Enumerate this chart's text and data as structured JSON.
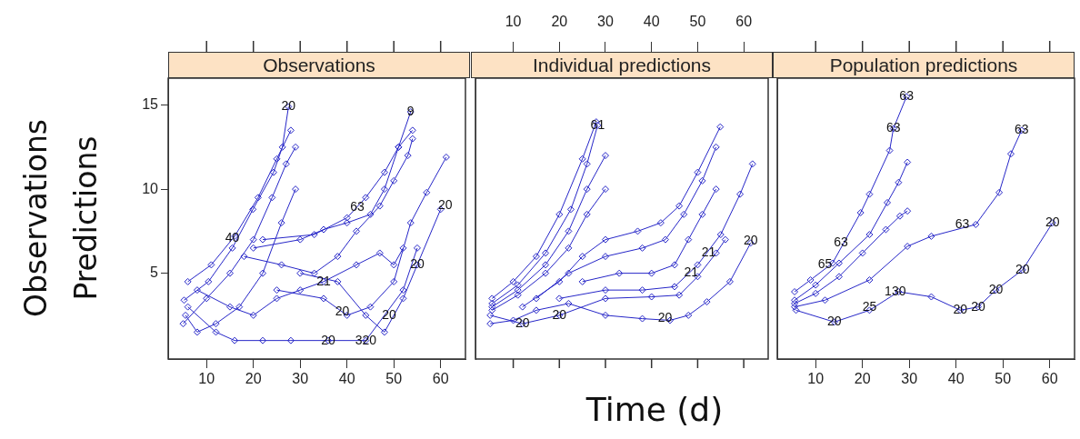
{
  "chart_data": [
    {
      "type": "line",
      "title": "Observations",
      "ylabel": "Observations\nPredictions",
      "xlim": [
        1.8,
        65.3
      ],
      "xticks": [
        10,
        20,
        30,
        40,
        50,
        60
      ],
      "ylim": [
        -0.1,
        16.6
      ],
      "yticks": [
        5,
        10,
        15
      ],
      "marker": "diamond",
      "line_style": "solid",
      "series": [
        {
          "color": "#2626c8",
          "x": [
            5.2,
            10.4,
            15.5,
            19.9,
            24.3,
            26.2,
            27.5
          ],
          "values": [
            3.4,
            4.5,
            6.5,
            8.8,
            11,
            12.5,
            14.9
          ]
        },
        {
          "color": "#2626c8",
          "x": [
            5,
            10,
            15,
            20,
            24,
            27,
            29
          ],
          "values": [
            2,
            3.5,
            5,
            7,
            9.5,
            11.5,
            12.5
          ]
        },
        {
          "color": "#2626c8",
          "x": [
            6,
            11,
            16,
            21,
            25,
            28
          ],
          "values": [
            4.5,
            5.5,
            7.2,
            9.5,
            11.8,
            13.5
          ]
        },
        {
          "color": "#2626c8",
          "x": [
            5.5,
            8,
            12,
            17,
            22,
            26,
            29
          ],
          "values": [
            2.5,
            1.5,
            2,
            3,
            5,
            8,
            10
          ]
        },
        {
          "color": "#2626c8",
          "x": [
            6,
            12,
            16,
            22,
            28,
            36,
            44,
            52,
            55
          ],
          "values": [
            3,
            1.5,
            1,
            1,
            1,
            1,
            1,
            4,
            6.5
          ]
        },
        {
          "color": "#2626c8",
          "x": [
            20,
            30,
            35,
            40,
            45,
            48,
            51,
            53.6
          ],
          "values": [
            6.5,
            7,
            7.6,
            8,
            8.5,
            10,
            12.5,
            14.6
          ]
        },
        {
          "color": "#2626c8",
          "x": [
            22,
            33,
            40,
            44,
            48,
            51,
            54
          ],
          "values": [
            7,
            7.3,
            8.3,
            9.5,
            11,
            12.5,
            13.5
          ]
        },
        {
          "color": "#2626c8",
          "x": [
            18,
            26,
            33,
            38,
            42,
            47,
            50,
            53,
            54
          ],
          "values": [
            6,
            5.5,
            5,
            6,
            7.5,
            9,
            10.5,
            12,
            13
          ]
        },
        {
          "color": "#2626c8",
          "x": [
            25,
            35,
            40,
            45,
            50,
            53.6,
            57,
            61.2
          ],
          "values": [
            4,
            3.5,
            2.5,
            3,
            4.5,
            8,
            9.8,
            11.9
          ]
        },
        {
          "color": "#2626c8",
          "x": [
            30,
            38,
            44,
            48,
            52,
            55,
            60
          ],
          "values": [
            5,
            4.5,
            2.5,
            1.5,
            3.5,
            5.5,
            8.8
          ]
        },
        {
          "color": "#2626c8",
          "x": [
            8,
            15,
            20,
            25,
            30,
            35,
            42,
            47,
            50,
            52
          ],
          "values": [
            4,
            3,
            2.5,
            3.5,
            4,
            4.5,
            5.5,
            6.2,
            5.5,
            6.5
          ]
        }
      ],
      "annotations": [
        {
          "text": "20",
          "x": 27.5,
          "y": 14.9
        },
        {
          "text": "9",
          "x": 53.6,
          "y": 14.6
        },
        {
          "text": "20",
          "x": 61,
          "y": 9
        },
        {
          "text": "63",
          "x": 42.2,
          "y": 8.9
        },
        {
          "text": "40",
          "x": 15.5,
          "y": 7.1
        },
        {
          "text": "21",
          "x": 35,
          "y": 4.5
        },
        {
          "text": "20",
          "x": 39,
          "y": 2.7
        },
        {
          "text": "20",
          "x": 49,
          "y": 2.5
        },
        {
          "text": "20",
          "x": 55,
          "y": 5.5
        },
        {
          "text": "20",
          "x": 36,
          "y": 1
        },
        {
          "text": "320",
          "x": 44,
          "y": 1
        }
      ]
    },
    {
      "type": "line",
      "title": "Individual predictions",
      "xlabel": "Time (d)",
      "xlim": [
        1.8,
        65.3
      ],
      "xticks": [
        10,
        20,
        30,
        40,
        50,
        60
      ],
      "ylim": [
        -0.1,
        16.6
      ],
      "tick_labels": "x",
      "marker": "diamond",
      "line_style": "solid",
      "series": [
        {
          "color": "#2626c8",
          "x": [
            5.4,
            11,
            17,
            22.5,
            26,
            28.3
          ],
          "values": [
            3.2,
            4.3,
            6.2,
            8.8,
            11.5,
            13.8
          ]
        },
        {
          "color": "#2626c8",
          "x": [
            5.4,
            11,
            17,
            22,
            26,
            30
          ],
          "values": [
            3,
            4,
            5.5,
            7.5,
            10,
            12
          ]
        },
        {
          "color": "#2626c8",
          "x": [
            5.4,
            11,
            17,
            22,
            26,
            30
          ],
          "values": [
            2.8,
            3.7,
            5,
            6.5,
            8.5,
            10
          ]
        },
        {
          "color": "#2626c8",
          "x": [
            5.4,
            10,
            15,
            20,
            25,
            28
          ],
          "values": [
            3.5,
            4.5,
            6,
            8.5,
            11.8,
            14
          ]
        },
        {
          "color": "#2626c8",
          "x": [
            12,
            20,
            25,
            30,
            37,
            42,
            46,
            50,
            54.9
          ],
          "values": [
            3,
            4.5,
            6,
            7,
            7.5,
            8,
            9,
            11,
            13.7
          ]
        },
        {
          "color": "#2626c8",
          "x": [
            15,
            22,
            30,
            38,
            43,
            47,
            51,
            54
          ],
          "values": [
            3.5,
            5,
            6,
            6.5,
            7,
            8.5,
            10.5,
            12.5
          ]
        },
        {
          "color": "#2626c8",
          "x": [
            25,
            33,
            40,
            45,
            48,
            51,
            54
          ],
          "values": [
            4.5,
            5,
            5,
            5.5,
            7,
            8.5,
            10
          ]
        },
        {
          "color": "#2626c8",
          "x": [
            20,
            30,
            38,
            45,
            50,
            55,
            59.2,
            61.9
          ],
          "values": [
            3.5,
            4,
            4,
            4.2,
            5.5,
            7.3,
            9.7,
            11.5
          ]
        },
        {
          "color": "#2626c8",
          "x": [
            5,
            10,
            15,
            22,
            30,
            38,
            44,
            48,
            52,
            57,
            61.5
          ],
          "values": [
            2,
            2.2,
            2.8,
            3.2,
            2.5,
            2.3,
            2.2,
            2.5,
            3.3,
            4.5,
            6.8
          ]
        },
        {
          "color": "#2626c8",
          "x": [
            5,
            12,
            20,
            30,
            40,
            46,
            50,
            54,
            56
          ],
          "values": [
            2.5,
            2,
            2.5,
            3.5,
            3.6,
            3.7,
            4.8,
            6.2,
            7
          ]
        }
      ],
      "annotations": [
        {
          "text": "61",
          "x": 28.3,
          "y": 13.8
        },
        {
          "text": "20",
          "x": 61.5,
          "y": 6.9
        },
        {
          "text": "21",
          "x": 48.6,
          "y": 5
        },
        {
          "text": "21",
          "x": 52.4,
          "y": 6.2
        },
        {
          "text": "20",
          "x": 20,
          "y": 2.5
        },
        {
          "text": "20",
          "x": 12,
          "y": 2
        },
        {
          "text": "20",
          "x": 42.9,
          "y": 2.3
        }
      ]
    },
    {
      "type": "line",
      "title": "Population predictions",
      "xlim": [
        1.8,
        65.3
      ],
      "xticks": [
        10,
        20,
        30,
        40,
        50,
        60
      ],
      "ylim": [
        -0.1,
        16.6
      ],
      "tick_labels": "x",
      "marker": "diamond",
      "line_style": "solid",
      "series": [
        {
          "color": "#2626c8",
          "x": [
            5.5,
            8.9,
            13.6,
            19.6,
            21.5,
            25.8,
            26.6,
            29.4
          ],
          "values": [
            3.9,
            4.6,
            5.6,
            8.6,
            9.7,
            12.3,
            13.6,
            15.5
          ]
        },
        {
          "color": "#2626c8",
          "x": [
            5.5,
            10,
            15,
            21.5,
            25.3,
            27.7,
            29.6
          ],
          "values": [
            3.4,
            4.3,
            5.6,
            7.3,
            9.2,
            10.4,
            11.6
          ]
        },
        {
          "color": "#2626c8",
          "x": [
            5.5,
            10,
            15,
            20,
            25,
            28,
            29.6
          ],
          "values": [
            3.2,
            3.8,
            4.8,
            6.2,
            7.6,
            8.4,
            8.7
          ]
        },
        {
          "color": "#2626c8",
          "x": [
            5.5,
            12,
            21.5,
            29.6,
            34.7,
            44.2,
            49.2,
            51.7,
            54
          ],
          "values": [
            3,
            3.4,
            4.6,
            6.6,
            7.2,
            7.9,
            9.8,
            12.1,
            13.5
          ]
        },
        {
          "color": "#2626c8",
          "x": [
            5.8,
            14,
            21.5,
            27.7,
            34.7,
            40.9,
            44.7,
            48.5,
            54.2,
            60.6
          ],
          "values": [
            2.8,
            2.1,
            2.8,
            3.9,
            3.6,
            2.8,
            3,
            4,
            5.2,
            8
          ]
        }
      ],
      "annotations": [
        {
          "text": "63",
          "x": 29.4,
          "y": 15.5
        },
        {
          "text": "63",
          "x": 26.6,
          "y": 13.6
        },
        {
          "text": "63",
          "x": 15.4,
          "y": 6.8
        },
        {
          "text": "65",
          "x": 12,
          "y": 5.5
        },
        {
          "text": "63",
          "x": 54,
          "y": 13.5
        },
        {
          "text": "63",
          "x": 41.3,
          "y": 7.9
        },
        {
          "text": "20",
          "x": 60.6,
          "y": 8
        },
        {
          "text": "20",
          "x": 54.2,
          "y": 5.2
        },
        {
          "text": "20",
          "x": 48.5,
          "y": 4
        },
        {
          "text": "20",
          "x": 14,
          "y": 2.1
        },
        {
          "text": "25",
          "x": 21.5,
          "y": 3
        },
        {
          "text": "130",
          "x": 27,
          "y": 3.9
        },
        {
          "text": "20",
          "x": 40.9,
          "y": 2.8
        },
        {
          "text": "20",
          "x": 44.7,
          "y": 3
        }
      ]
    }
  ]
}
